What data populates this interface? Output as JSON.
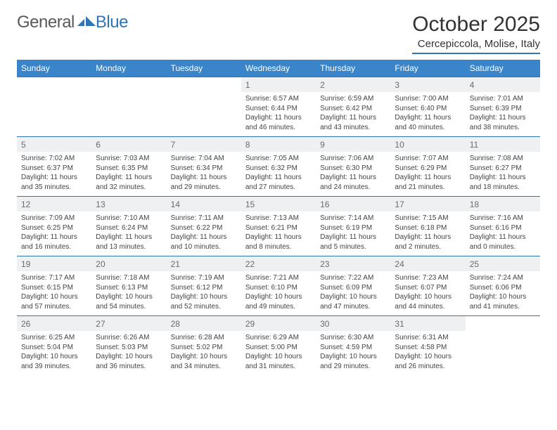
{
  "logo": {
    "text1": "General",
    "text2": "Blue"
  },
  "title": "October 2025",
  "location": "Cercepiccola, Molise, Italy",
  "colors": {
    "accent": "#3a85c9",
    "border": "#2e75b6",
    "daynum_bg": "#eef0f2",
    "text": "#333333",
    "muted": "#6b6b6b"
  },
  "weekdays": [
    "Sunday",
    "Monday",
    "Tuesday",
    "Wednesday",
    "Thursday",
    "Friday",
    "Saturday"
  ],
  "weeks": [
    [
      {
        "blank": true
      },
      {
        "blank": true
      },
      {
        "blank": true
      },
      {
        "n": "1",
        "sunrise": "6:57 AM",
        "sunset": "6:44 PM",
        "daylight": "11 hours and 46 minutes."
      },
      {
        "n": "2",
        "sunrise": "6:59 AM",
        "sunset": "6:42 PM",
        "daylight": "11 hours and 43 minutes."
      },
      {
        "n": "3",
        "sunrise": "7:00 AM",
        "sunset": "6:40 PM",
        "daylight": "11 hours and 40 minutes."
      },
      {
        "n": "4",
        "sunrise": "7:01 AM",
        "sunset": "6:39 PM",
        "daylight": "11 hours and 38 minutes."
      }
    ],
    [
      {
        "n": "5",
        "sunrise": "7:02 AM",
        "sunset": "6:37 PM",
        "daylight": "11 hours and 35 minutes."
      },
      {
        "n": "6",
        "sunrise": "7:03 AM",
        "sunset": "6:35 PM",
        "daylight": "11 hours and 32 minutes."
      },
      {
        "n": "7",
        "sunrise": "7:04 AM",
        "sunset": "6:34 PM",
        "daylight": "11 hours and 29 minutes."
      },
      {
        "n": "8",
        "sunrise": "7:05 AM",
        "sunset": "6:32 PM",
        "daylight": "11 hours and 27 minutes."
      },
      {
        "n": "9",
        "sunrise": "7:06 AM",
        "sunset": "6:30 PM",
        "daylight": "11 hours and 24 minutes."
      },
      {
        "n": "10",
        "sunrise": "7:07 AM",
        "sunset": "6:29 PM",
        "daylight": "11 hours and 21 minutes."
      },
      {
        "n": "11",
        "sunrise": "7:08 AM",
        "sunset": "6:27 PM",
        "daylight": "11 hours and 18 minutes."
      }
    ],
    [
      {
        "n": "12",
        "sunrise": "7:09 AM",
        "sunset": "6:25 PM",
        "daylight": "11 hours and 16 minutes."
      },
      {
        "n": "13",
        "sunrise": "7:10 AM",
        "sunset": "6:24 PM",
        "daylight": "11 hours and 13 minutes."
      },
      {
        "n": "14",
        "sunrise": "7:11 AM",
        "sunset": "6:22 PM",
        "daylight": "11 hours and 10 minutes."
      },
      {
        "n": "15",
        "sunrise": "7:13 AM",
        "sunset": "6:21 PM",
        "daylight": "11 hours and 8 minutes."
      },
      {
        "n": "16",
        "sunrise": "7:14 AM",
        "sunset": "6:19 PM",
        "daylight": "11 hours and 5 minutes."
      },
      {
        "n": "17",
        "sunrise": "7:15 AM",
        "sunset": "6:18 PM",
        "daylight": "11 hours and 2 minutes."
      },
      {
        "n": "18",
        "sunrise": "7:16 AM",
        "sunset": "6:16 PM",
        "daylight": "11 hours and 0 minutes."
      }
    ],
    [
      {
        "n": "19",
        "sunrise": "7:17 AM",
        "sunset": "6:15 PM",
        "daylight": "10 hours and 57 minutes."
      },
      {
        "n": "20",
        "sunrise": "7:18 AM",
        "sunset": "6:13 PM",
        "daylight": "10 hours and 54 minutes."
      },
      {
        "n": "21",
        "sunrise": "7:19 AM",
        "sunset": "6:12 PM",
        "daylight": "10 hours and 52 minutes."
      },
      {
        "n": "22",
        "sunrise": "7:21 AM",
        "sunset": "6:10 PM",
        "daylight": "10 hours and 49 minutes."
      },
      {
        "n": "23",
        "sunrise": "7:22 AM",
        "sunset": "6:09 PM",
        "daylight": "10 hours and 47 minutes."
      },
      {
        "n": "24",
        "sunrise": "7:23 AM",
        "sunset": "6:07 PM",
        "daylight": "10 hours and 44 minutes."
      },
      {
        "n": "25",
        "sunrise": "7:24 AM",
        "sunset": "6:06 PM",
        "daylight": "10 hours and 41 minutes."
      }
    ],
    [
      {
        "n": "26",
        "sunrise": "6:25 AM",
        "sunset": "5:04 PM",
        "daylight": "10 hours and 39 minutes."
      },
      {
        "n": "27",
        "sunrise": "6:26 AM",
        "sunset": "5:03 PM",
        "daylight": "10 hours and 36 minutes."
      },
      {
        "n": "28",
        "sunrise": "6:28 AM",
        "sunset": "5:02 PM",
        "daylight": "10 hours and 34 minutes."
      },
      {
        "n": "29",
        "sunrise": "6:29 AM",
        "sunset": "5:00 PM",
        "daylight": "10 hours and 31 minutes."
      },
      {
        "n": "30",
        "sunrise": "6:30 AM",
        "sunset": "4:59 PM",
        "daylight": "10 hours and 29 minutes."
      },
      {
        "n": "31",
        "sunrise": "6:31 AM",
        "sunset": "4:58 PM",
        "daylight": "10 hours and 26 minutes."
      },
      {
        "blank": true
      }
    ]
  ],
  "labels": {
    "sunrise": "Sunrise:",
    "sunset": "Sunset:",
    "daylight": "Daylight:"
  }
}
